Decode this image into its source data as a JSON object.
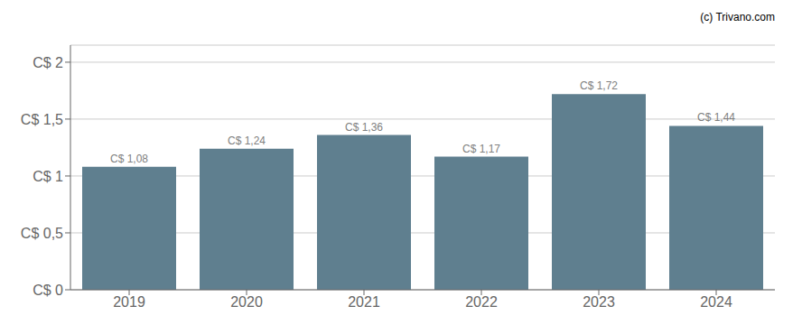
{
  "chart_data": {
    "type": "bar",
    "categories": [
      "2019",
      "2020",
      "2021",
      "2022",
      "2023",
      "2024"
    ],
    "values": [
      1.08,
      1.24,
      1.36,
      1.17,
      1.72,
      1.44
    ],
    "value_labels": [
      "C$ 1,08",
      "C$ 1,24",
      "C$ 1,36",
      "C$ 1,17",
      "C$ 1,72",
      "C$ 1,44"
    ],
    "data_labels": true,
    "color": "#5f7f8f",
    "ylim": [
      0,
      2.15
    ],
    "yticks": [
      {
        "value": 0,
        "label": "C$ 0"
      },
      {
        "value": 0.5,
        "label": "C$ 0,5"
      },
      {
        "value": 1.0,
        "label": "C$ 1"
      },
      {
        "value": 1.5,
        "label": "C$ 1,5"
      },
      {
        "value": 2.0,
        "label": "C$ 2"
      }
    ],
    "grid": true,
    "annotations": [
      "(c) Trivano.com"
    ]
  }
}
